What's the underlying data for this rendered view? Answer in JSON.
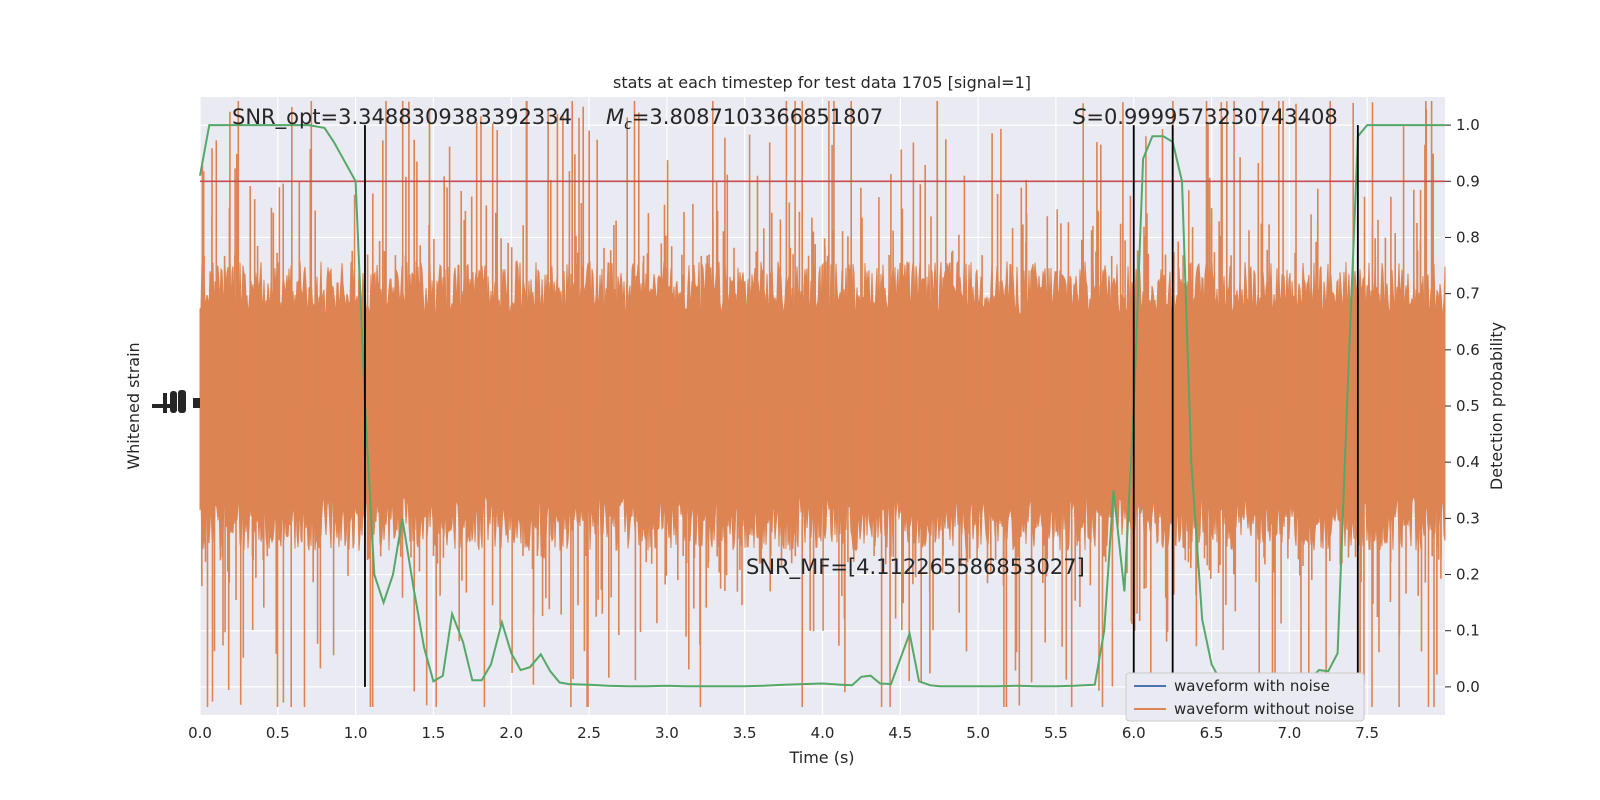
{
  "chart_data": {
    "type": "line",
    "title": "stats at each timestep for test data 1705 [signal=1]",
    "xlabel": "Time (s)",
    "ylabel_left": "Whitened strain",
    "ylabel_right": "Detection probability",
    "xlim": [
      0.0,
      8.0
    ],
    "ylim_right": [
      -0.05,
      1.05
    ],
    "grid": true,
    "legend_position": "bottom-right",
    "x_ticks": [
      "0.0",
      "0.5",
      "1.0",
      "1.5",
      "2.0",
      "2.5",
      "3.0",
      "3.5",
      "4.0",
      "4.5",
      "5.0",
      "5.5",
      "6.0",
      "6.5",
      "7.0",
      "7.5"
    ],
    "y_ticks_right": [
      "0.0",
      "0.1",
      "0.2",
      "0.3",
      "0.4",
      "0.5",
      "0.6",
      "0.7",
      "0.8",
      "0.9",
      "1.0"
    ],
    "threshold": 0.9,
    "vertical_markers": [
      1.06,
      6.0,
      6.25,
      7.44
    ],
    "annotations": {
      "snr_opt": "SNR_opt=3.3488309383392334",
      "mc_label": "M",
      "mc_subscript": "c",
      "mc_value": "=3.8087103366851807",
      "s_label": "S",
      "s_value": "=0.9999573230743408",
      "snr_mf": "SNR_MF=[4.112265586853027]"
    },
    "series": [
      {
        "name": "waveform with noise",
        "color": "#4c72b0"
      },
      {
        "name": "waveform without noise",
        "color": "#dd8452"
      }
    ],
    "detection_probability": {
      "color": "#55a868",
      "x": [
        0.0,
        0.06,
        0.12,
        0.2,
        0.3,
        0.4,
        0.5,
        0.6,
        0.7,
        0.8,
        0.86,
        0.92,
        1.0,
        1.06,
        1.12,
        1.18,
        1.24,
        1.3,
        1.37,
        1.44,
        1.5,
        1.56,
        1.62,
        1.69,
        1.75,
        1.81,
        1.87,
        1.94,
        2.0,
        2.06,
        2.12,
        2.19,
        2.25,
        2.31,
        2.37,
        2.5,
        2.62,
        2.75,
        2.87,
        3.0,
        3.12,
        3.25,
        3.37,
        3.5,
        3.62,
        3.75,
        3.87,
        4.0,
        4.12,
        4.19,
        4.25,
        4.31,
        4.37,
        4.44,
        4.5,
        4.56,
        4.62,
        4.69,
        4.75,
        4.87,
        5.0,
        5.12,
        5.25,
        5.37,
        5.5,
        5.62,
        5.75,
        5.81,
        5.87,
        5.94,
        6.0,
        6.06,
        6.12,
        6.19,
        6.25,
        6.31,
        6.37,
        6.44,
        6.5,
        6.56,
        6.62,
        6.69,
        6.75,
        6.87,
        7.0,
        7.06,
        7.12,
        7.19,
        7.25,
        7.31,
        7.37,
        7.44,
        7.5,
        7.56,
        7.62,
        7.75,
        7.87,
        8.0
      ],
      "values": [
        0.91,
        1.0,
        1.0,
        1.0,
        1.0,
        1.0,
        1.0,
        1.0,
        1.0,
        0.995,
        0.97,
        0.94,
        0.9,
        0.5,
        0.2,
        0.15,
        0.2,
        0.3,
        0.18,
        0.07,
        0.01,
        0.02,
        0.13,
        0.08,
        0.012,
        0.012,
        0.04,
        0.115,
        0.06,
        0.03,
        0.035,
        0.058,
        0.028,
        0.008,
        0.005,
        0.004,
        0.002,
        0.001,
        0.001,
        0.002,
        0.001,
        0.001,
        0.001,
        0.001,
        0.002,
        0.004,
        0.005,
        0.006,
        0.004,
        0.003,
        0.018,
        0.02,
        0.006,
        0.005,
        0.05,
        0.095,
        0.01,
        0.003,
        0.001,
        0.001,
        0.001,
        0.001,
        0.002,
        0.001,
        0.001,
        0.002,
        0.004,
        0.1,
        0.35,
        0.17,
        0.5,
        0.94,
        0.98,
        0.98,
        0.97,
        0.9,
        0.4,
        0.12,
        0.04,
        0.01,
        0.005,
        0.003,
        0.002,
        0.001,
        0.001,
        0.004,
        0.01,
        0.03,
        0.028,
        0.06,
        0.5,
        0.98,
        1.0,
        1.0,
        1.0,
        1.0,
        1.0,
        1.0
      ]
    }
  }
}
